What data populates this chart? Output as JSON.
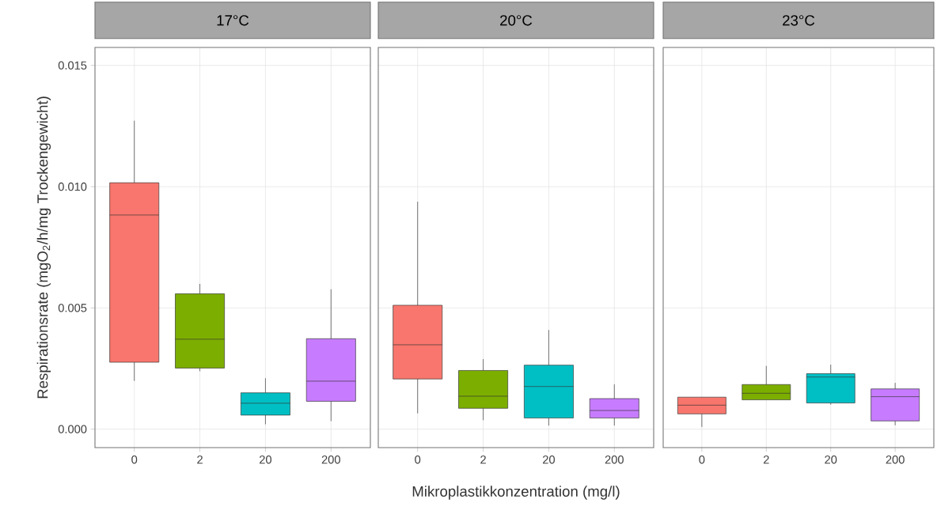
{
  "chart_data": [
    {
      "type": "box",
      "title": "17°C",
      "ylabel": "Respirationsrate (mgO$_{2}$/h/mg Trockengewicht)",
      "categories": [
        "0",
        "2",
        "20",
        "200"
      ],
      "colors": [
        "#f8766d",
        "#7cae00",
        "#00bfc4",
        "#c77cff"
      ],
      "ylim": [
        -0.00076,
        0.01574
      ],
      "yticks": [
        {
          "value": 0,
          "label": "0.000"
        },
        {
          "value": 0.005,
          "label": "0.005"
        },
        {
          "value": 0.01,
          "label": "0.010"
        },
        {
          "value": 0.015,
          "label": "0.015"
        }
      ],
      "grid": true,
      "boxes": [
        {
          "low": 0.00199,
          "q1": 0.00276,
          "median": 0.00883,
          "q3": 0.01016,
          "high": 0.01272
        },
        {
          "low": 0.00239,
          "q1": 0.00252,
          "median": 0.00371,
          "q3": 0.00558,
          "high": 0.00599
        },
        {
          "low": 0.0002,
          "q1": 0.00058,
          "median": 0.00107,
          "q3": 0.0015,
          "high": 0.0021
        },
        {
          "low": 0.00033,
          "q1": 0.00115,
          "median": 0.00198,
          "q3": 0.00373,
          "high": 0.00577
        }
      ]
    },
    {
      "type": "box",
      "title": "20°C",
      "xlabel": "Mikroplastikkonzentration (mg/l)",
      "categories": [
        "0",
        "2",
        "20",
        "200"
      ],
      "colors": [
        "#f8766d",
        "#7cae00",
        "#00bfc4",
        "#c77cff"
      ],
      "ylim": [
        -0.00076,
        0.01574
      ],
      "yticks": [
        0,
        0.005,
        0.01,
        0.015
      ],
      "tick_labels": "x",
      "grid": true,
      "boxes": [
        {
          "low": 0.00065,
          "q1": 0.00207,
          "median": 0.00348,
          "q3": 0.00511,
          "high": 0.00938
        },
        {
          "low": 0.00037,
          "q1": 0.00086,
          "median": 0.00136,
          "q3": 0.00242,
          "high": 0.00289
        },
        {
          "low": 0.00015,
          "q1": 0.00046,
          "median": 0.00176,
          "q3": 0.00264,
          "high": 0.00409
        },
        {
          "low": 0.00015,
          "q1": 0.00046,
          "median": 0.00077,
          "q3": 0.00126,
          "high": 0.00185
        }
      ]
    },
    {
      "type": "box",
      "title": "23°C",
      "categories": [
        "0",
        "2",
        "20",
        "200"
      ],
      "colors": [
        "#f8766d",
        "#7cae00",
        "#00bfc4",
        "#c77cff"
      ],
      "ylim": [
        -0.00076,
        0.01574
      ],
      "yticks": [
        0,
        0.005,
        0.01,
        0.015
      ],
      "tick_labels": "x",
      "grid": true,
      "boxes": [
        {
          "low": 9e-05,
          "q1": 0.00063,
          "median": 0.00099,
          "q3": 0.00132,
          "high": 0.00132
        },
        {
          "low": 0.00121,
          "q1": 0.00121,
          "median": 0.00148,
          "q3": 0.00184,
          "high": 0.00261
        },
        {
          "low": 0.00101,
          "q1": 0.00108,
          "median": 0.00215,
          "q3": 0.00229,
          "high": 0.00266
        },
        {
          "low": 0.00016,
          "q1": 0.00034,
          "median": 0.00134,
          "q3": 0.00166,
          "high": 0.00191
        }
      ]
    }
  ]
}
